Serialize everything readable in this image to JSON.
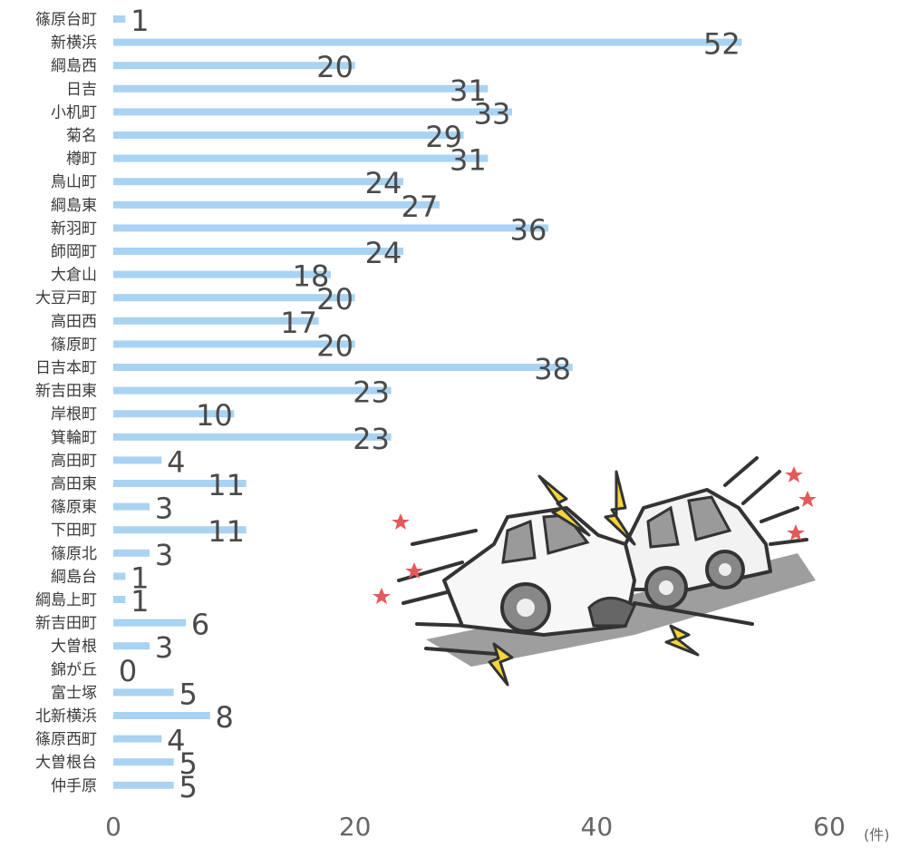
{
  "chart_data": {
    "type": "bar",
    "orientation": "horizontal",
    "categories": [
      "篠原台町",
      "新横浜",
      "綱島西",
      "日吉",
      "小机町",
      "菊名",
      "樽町",
      "鳥山町",
      "綱島東",
      "新羽町",
      "師岡町",
      "大倉山",
      "大豆戸町",
      "高田西",
      "篠原町",
      "日吉本町",
      "新吉田東",
      "岸根町",
      "箕輪町",
      "高田町",
      "高田東",
      "篠原東",
      "下田町",
      "篠原北",
      "綱島台",
      "綱島上町",
      "新吉田町",
      "大曽根",
      "錦が丘",
      "富士塚",
      "北新横浜",
      "篠原西町",
      "大曽根台",
      "仲手原"
    ],
    "values": [
      1,
      52,
      20,
      31,
      33,
      29,
      31,
      24,
      27,
      36,
      24,
      18,
      20,
      17,
      20,
      38,
      23,
      10,
      23,
      4,
      11,
      3,
      11,
      3,
      1,
      1,
      6,
      3,
      0,
      5,
      8,
      4,
      5,
      5
    ],
    "xlim": [
      0,
      60
    ],
    "xticks": [
      0,
      20,
      40,
      60
    ],
    "xunit": "(件)",
    "grid": false,
    "bar_color": "#a9d3f2"
  },
  "illustration": {
    "icon": "car-collision-icon",
    "star_color": "#e35a5a",
    "spark_color": "#f5d53a"
  }
}
